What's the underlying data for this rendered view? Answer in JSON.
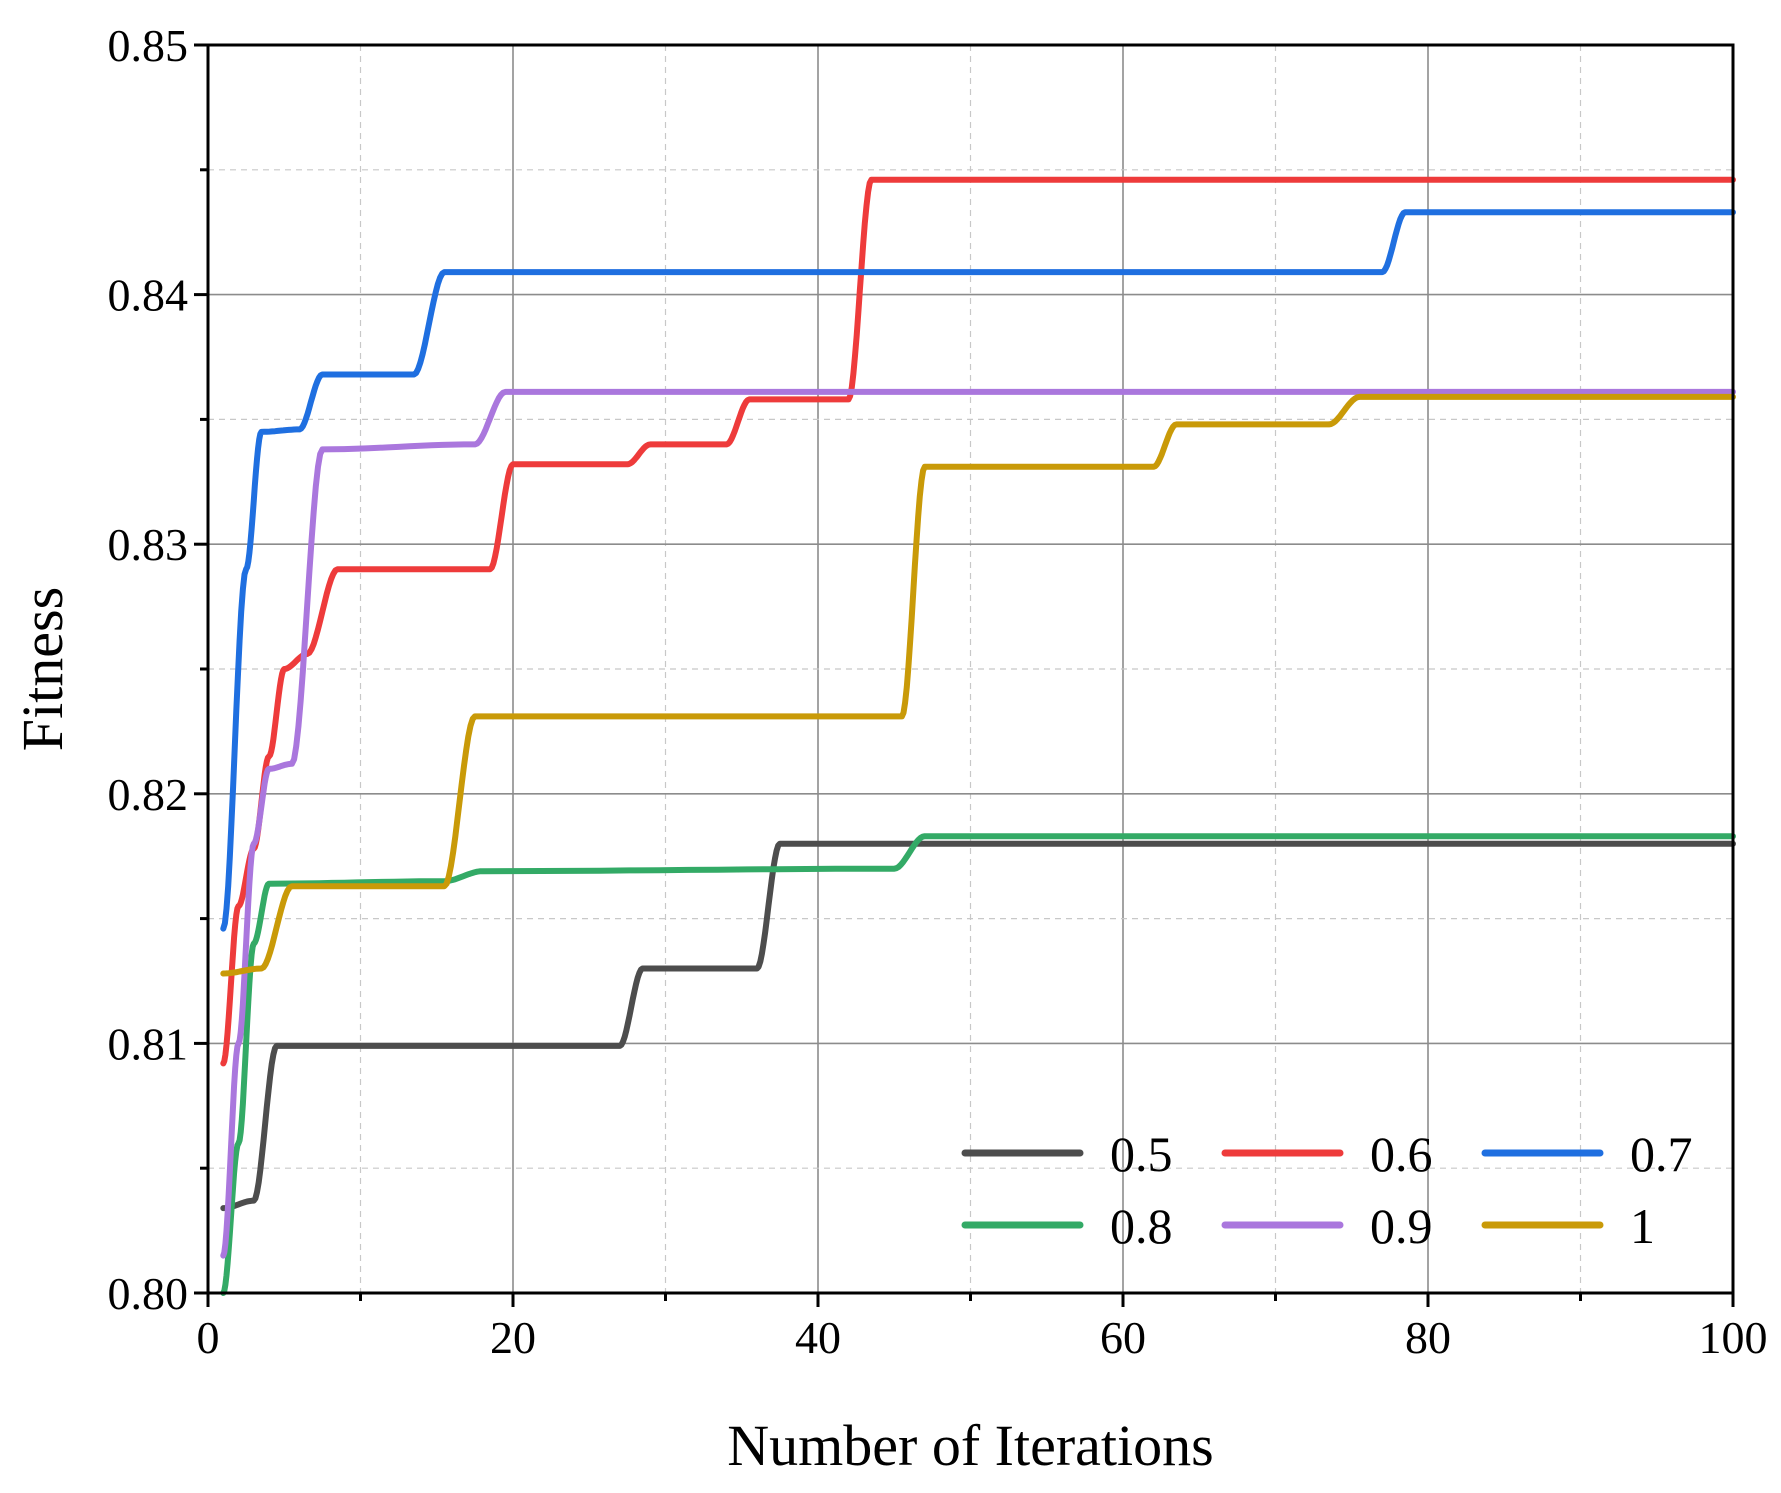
{
  "chart_data": {
    "type": "line",
    "title": "",
    "xlabel": "Number of Iterations",
    "ylabel": "Fitness",
    "xlim": [
      0,
      100
    ],
    "ylim": [
      0.8,
      0.85
    ],
    "xticks": [
      0,
      20,
      40,
      60,
      80,
      100
    ],
    "xtick_labels": [
      "0",
      "20",
      "40",
      "60",
      "80",
      "100"
    ],
    "yticks": [
      0.8,
      0.81,
      0.82,
      0.83,
      0.84,
      0.85
    ],
    "ytick_labels": [
      "0.80",
      "0.81",
      "0.82",
      "0.83",
      "0.84",
      "0.85"
    ],
    "grid": true,
    "legend_position": "bottom-right",
    "series": [
      {
        "name": "0.5",
        "color": "#4d4d4d",
        "steps": [
          [
            1,
            0.8034
          ],
          [
            3,
            0.8037
          ],
          [
            4.5,
            0.8099
          ],
          [
            27,
            0.8099
          ],
          [
            28.5,
            0.813
          ],
          [
            36,
            0.813
          ],
          [
            37.5,
            0.818
          ],
          [
            100,
            0.818
          ]
        ]
      },
      {
        "name": "0.6",
        "color": "#ee3b3b",
        "steps": [
          [
            1,
            0.8092
          ],
          [
            2,
            0.8155
          ],
          [
            3,
            0.8178
          ],
          [
            4,
            0.8215
          ],
          [
            5,
            0.825
          ],
          [
            6.5,
            0.8256
          ],
          [
            8.5,
            0.829
          ],
          [
            18.5,
            0.829
          ],
          [
            20,
            0.8332
          ],
          [
            27.5,
            0.8332
          ],
          [
            29,
            0.834
          ],
          [
            34,
            0.834
          ],
          [
            35.5,
            0.8358
          ],
          [
            42,
            0.8358
          ],
          [
            43.5,
            0.8446
          ],
          [
            100,
            0.8446
          ]
        ]
      },
      {
        "name": "0.7",
        "color": "#1f6fe0",
        "steps": [
          [
            1,
            0.8146
          ],
          [
            2.5,
            0.829
          ],
          [
            3.5,
            0.8345
          ],
          [
            6,
            0.8346
          ],
          [
            7.5,
            0.8368
          ],
          [
            13.5,
            0.8368
          ],
          [
            15.5,
            0.8409
          ],
          [
            77,
            0.8409
          ],
          [
            78.5,
            0.8433
          ],
          [
            100,
            0.8433
          ]
        ]
      },
      {
        "name": "0.8",
        "color": "#33aa66",
        "steps": [
          [
            1,
            0.8
          ],
          [
            2,
            0.806
          ],
          [
            3,
            0.814
          ],
          [
            4,
            0.8164
          ],
          [
            15.5,
            0.8165
          ],
          [
            18,
            0.8169
          ],
          [
            45,
            0.817
          ],
          [
            47,
            0.8183
          ],
          [
            100,
            0.8183
          ]
        ]
      },
      {
        "name": "0.9",
        "color": "#aa77dd",
        "steps": [
          [
            1,
            0.8015
          ],
          [
            2,
            0.81
          ],
          [
            3,
            0.818
          ],
          [
            4,
            0.821
          ],
          [
            5.5,
            0.8212
          ],
          [
            7.5,
            0.8338
          ],
          [
            17.5,
            0.834
          ],
          [
            19.5,
            0.8361
          ],
          [
            100,
            0.8361
          ]
        ]
      },
      {
        "name": "1",
        "color": "#c99a08",
        "steps": [
          [
            1,
            0.8128
          ],
          [
            3.5,
            0.813
          ],
          [
            5.5,
            0.8163
          ],
          [
            15.5,
            0.8163
          ],
          [
            17.5,
            0.8231
          ],
          [
            45.5,
            0.8231
          ],
          [
            47,
            0.8331
          ],
          [
            62,
            0.8331
          ],
          [
            63.5,
            0.8348
          ],
          [
            73.5,
            0.8348
          ],
          [
            75.5,
            0.8359
          ],
          [
            100,
            0.8359
          ]
        ]
      }
    ]
  }
}
